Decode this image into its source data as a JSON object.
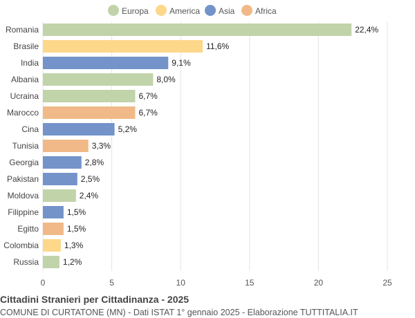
{
  "chart_data": {
    "type": "bar",
    "orientation": "horizontal",
    "title": "Cittadini Stranieri per Cittadinanza - 2025",
    "subtitle": "COMUNE DI CURTATONE (MN) - Dati ISTAT 1° gennaio 2025 - Elaborazione TUTTITALIA.IT",
    "categories": [
      "Romania",
      "Brasile",
      "India",
      "Albania",
      "Ucraina",
      "Marocco",
      "Cina",
      "Tunisia",
      "Georgia",
      "Pakistan",
      "Moldova",
      "Filippine",
      "Egitto",
      "Colombia",
      "Russia"
    ],
    "values": [
      22.4,
      11.6,
      9.1,
      8.0,
      6.7,
      6.7,
      5.2,
      3.3,
      2.8,
      2.5,
      2.4,
      1.5,
      1.5,
      1.3,
      1.2
    ],
    "value_labels": [
      "22,4%",
      "11,6%",
      "9,1%",
      "8,0%",
      "6,7%",
      "6,7%",
      "5,2%",
      "3,3%",
      "2,8%",
      "2,5%",
      "2,4%",
      "1,5%",
      "1,5%",
      "1,3%",
      "1,2%"
    ],
    "groups": [
      "Europa",
      "America",
      "Asia",
      "Europa",
      "Europa",
      "Africa",
      "Asia",
      "Africa",
      "Asia",
      "Asia",
      "Europa",
      "Asia",
      "Africa",
      "America",
      "Europa"
    ],
    "legend": [
      {
        "name": "Europa",
        "color": "#c1d3a9"
      },
      {
        "name": "America",
        "color": "#fdd78a"
      },
      {
        "name": "Asia",
        "color": "#7393c9"
      },
      {
        "name": "Africa",
        "color": "#f0b987"
      }
    ],
    "legend_position": "top",
    "xlim": [
      0,
      25
    ],
    "xticks": [
      0,
      5,
      10,
      15,
      20,
      25
    ],
    "grid": true
  }
}
